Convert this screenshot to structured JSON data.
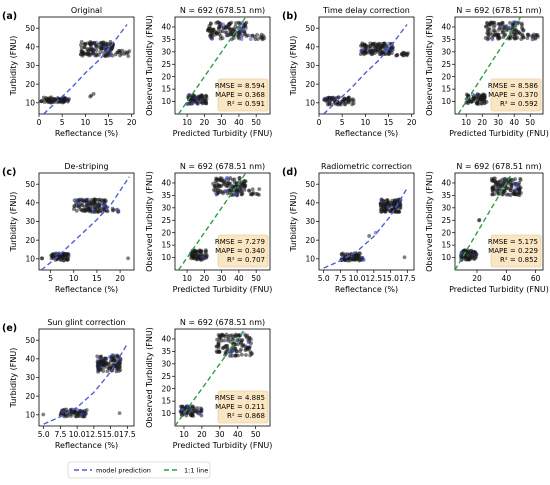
{
  "colors": {
    "model_line": "#4f5fd6",
    "identity_line": "#2e9e47",
    "points": "#1a1a1a",
    "points_highlight": "#3b4dd4",
    "stats_box": "#fbe6c3",
    "stats_border": "#e0c48e"
  },
  "legend": {
    "model_label": "model prediction",
    "identity_label": "1:1 line"
  },
  "chart_data": [
    {
      "type": "scatter",
      "panel_label": "(a)",
      "title": "Original",
      "xlabel": "Reflectance (%)",
      "ylabel": "Turbidity (FNU)",
      "xlim": [
        0,
        20.5
      ],
      "ylim": [
        4,
        56
      ],
      "xticks": [
        0,
        5,
        10,
        15,
        20
      ],
      "yticks": [
        10,
        20,
        30,
        40,
        50
      ],
      "series": [
        {
          "name": "model prediction",
          "kind": "model_curve",
          "x": [
            1,
            4,
            7,
            10,
            13,
            16,
            19
          ],
          "y": [
            4,
            11,
            18,
            26,
            33,
            42,
            52
          ]
        },
        {
          "kind": "points",
          "clusters": [
            {
              "x": [
                0.5,
                6.5
              ],
              "y": [
                10,
                13
              ],
              "n": 70
            },
            {
              "x": [
                9,
                16
              ],
              "y": [
                35,
                43
              ],
              "n": 120
            },
            {
              "x": [
                16.5,
                19.5
              ],
              "y": [
                35,
                38
              ],
              "n": 15
            },
            {
              "x": [
                10,
                12
              ],
              "y": [
                13,
                15
              ],
              "n": 3
            }
          ]
        }
      ]
    },
    {
      "type": "scatter",
      "title": "N = 692 (678.51 nm)",
      "xlabel": "Predicted Turbidity (FNU)",
      "ylabel": "Observed Turbidity (FNU)",
      "xlim": [
        3,
        58
      ],
      "ylim": [
        5,
        44
      ],
      "xticks": [
        10,
        20,
        30,
        40,
        50
      ],
      "yticks": [
        10,
        15,
        20,
        25,
        30,
        35,
        40
      ],
      "stats": {
        "rmse": "RMSE = 8.594",
        "mape": "MAPE = 0.368",
        "r2": "R² = 0.591"
      },
      "series": [
        {
          "name": "1:1 line",
          "kind": "identity",
          "x": [
            5,
            44
          ],
          "y": [
            5,
            44
          ]
        },
        {
          "kind": "points",
          "clusters": [
            {
              "x": [
                10,
                22
              ],
              "y": [
                9,
                13
              ],
              "n": 70
            },
            {
              "x": [
                22,
                45
              ],
              "y": [
                35,
                42
              ],
              "n": 120
            },
            {
              "x": [
                45,
                55
              ],
              "y": [
                35,
                37
              ],
              "n": 15
            }
          ]
        }
      ]
    },
    {
      "type": "scatter",
      "panel_label": "(b)",
      "title": "Time delay correction",
      "xlabel": "Reflectance (%)",
      "ylabel": "Turbidity (FNU)",
      "xlim": [
        0,
        20.5
      ],
      "ylim": [
        4,
        56
      ],
      "xticks": [
        0,
        5,
        10,
        15,
        20
      ],
      "yticks": [
        10,
        20,
        30,
        40,
        50
      ],
      "series": [
        {
          "name": "model prediction",
          "kind": "model_curve",
          "x": [
            1,
            4,
            7,
            10,
            13,
            16,
            19
          ],
          "y": [
            4,
            11,
            18,
            26,
            33,
            42,
            52
          ]
        },
        {
          "kind": "points",
          "clusters": [
            {
              "x": [
                1,
                7.5
              ],
              "y": [
                9,
                13
              ],
              "n": 70
            },
            {
              "x": [
                9,
                16
              ],
              "y": [
                36,
                42
              ],
              "n": 120
            },
            {
              "x": [
                16.5,
                19.5
              ],
              "y": [
                35,
                37
              ],
              "n": 15
            }
          ]
        }
      ]
    },
    {
      "type": "scatter",
      "title": "N = 692 (678.51 nm)",
      "xlabel": "Predicted Turbidity (FNU)",
      "ylabel": "Observed Turbidity (FNU)",
      "xlim": [
        3,
        58
      ],
      "ylim": [
        5,
        44
      ],
      "xticks": [
        10,
        20,
        30,
        40,
        50
      ],
      "yticks": [
        10,
        15,
        20,
        25,
        30,
        35,
        40
      ],
      "stats": {
        "rmse": "RMSE = 8.586",
        "mape": "MAPE = 0.370",
        "r2": "R² = 0.592"
      },
      "series": [
        {
          "name": "1:1 line",
          "kind": "identity",
          "x": [
            5,
            44
          ],
          "y": [
            5,
            44
          ]
        },
        {
          "kind": "points",
          "clusters": [
            {
              "x": [
                10,
                23
              ],
              "y": [
                9,
                13
              ],
              "n": 70
            },
            {
              "x": [
                22,
                46
              ],
              "y": [
                35,
                42
              ],
              "n": 120
            },
            {
              "x": [
                46,
                55
              ],
              "y": [
                35,
                37
              ],
              "n": 15
            }
          ]
        }
      ]
    },
    {
      "type": "scatter",
      "panel_label": "(c)",
      "title": "De-striping",
      "xlabel": "Reflectance (%)",
      "ylabel": "Turbidity (FNU)",
      "xlim": [
        2.5,
        23
      ],
      "ylim": [
        4,
        56
      ],
      "xticks": [
        5,
        10,
        15,
        20
      ],
      "yticks": [
        10,
        20,
        30,
        40,
        50
      ],
      "series": [
        {
          "name": "model prediction",
          "kind": "model_curve",
          "x": [
            3,
            6,
            9,
            12,
            15,
            18,
            22
          ],
          "y": [
            4,
            10,
            17,
            24,
            31,
            39,
            54
          ]
        },
        {
          "kind": "points",
          "clusters": [
            {
              "x": [
                5,
                9
              ],
              "y": [
                9,
                13
              ],
              "n": 70
            },
            {
              "x": [
                10,
                17
              ],
              "y": [
                35,
                42
              ],
              "n": 120
            },
            {
              "x": [
                17,
                20
              ],
              "y": [
                35,
                38
              ],
              "n": 12
            },
            {
              "x": [
                2.8,
                3.2
              ],
              "y": [
                10,
                11
              ],
              "n": 2
            },
            {
              "x": [
                21.5,
                22.5
              ],
              "y": [
                10,
                11
              ],
              "n": 1
            }
          ]
        }
      ]
    },
    {
      "type": "scatter",
      "title": "N = 692 (678.51 nm)",
      "xlabel": "Predicted Turbidity (FNU)",
      "ylabel": "Observed Turbidity (FNU)",
      "xlim": [
        3,
        58
      ],
      "ylim": [
        5,
        44
      ],
      "xticks": [
        10,
        20,
        30,
        40,
        50
      ],
      "yticks": [
        10,
        15,
        20,
        25,
        30,
        35,
        40
      ],
      "stats": {
        "rmse": "RMSE = 7.279",
        "mape": "MAPE = 0.340",
        "r2": "R² = 0.707"
      },
      "series": [
        {
          "name": "1:1 line",
          "kind": "identity",
          "x": [
            5,
            44
          ],
          "y": [
            5,
            44
          ]
        },
        {
          "kind": "points",
          "clusters": [
            {
              "x": [
                12,
                22
              ],
              "y": [
                9,
                13
              ],
              "n": 70
            },
            {
              "x": [
                25,
                44
              ],
              "y": [
                35,
                42
              ],
              "n": 120
            },
            {
              "x": [
                44,
                52
              ],
              "y": [
                35,
                38
              ],
              "n": 12
            }
          ]
        }
      ]
    },
    {
      "type": "scatter",
      "panel_label": "(d)",
      "title": "Radiometric correction",
      "xlabel": "Reflectance (%)",
      "ylabel": "Turbidity (FNU)",
      "xlim": [
        4.3,
        18.5
      ],
      "ylim": [
        4,
        56
      ],
      "xticks": [
        5.0,
        7.5,
        10.0,
        12.5,
        15.0,
        17.5
      ],
      "yticks": [
        10,
        20,
        30,
        40,
        50
      ],
      "series": [
        {
          "name": "model prediction",
          "kind": "model_curve",
          "x": [
            5,
            7.5,
            10,
            12.5,
            15,
            17.5
          ],
          "y": [
            5,
            9,
            14,
            22,
            33,
            48
          ]
        },
        {
          "kind": "points",
          "clusters": [
            {
              "x": [
                7.5,
                11
              ],
              "y": [
                9,
                13
              ],
              "n": 70
            },
            {
              "x": [
                13.5,
                16.5
              ],
              "y": [
                35,
                42
              ],
              "n": 120
            },
            {
              "x": [
                11,
                13
              ],
              "y": [
                20,
                26
              ],
              "n": 2
            },
            {
              "x": [
                16.8,
                17.2
              ],
              "y": [
                10,
                11
              ],
              "n": 1
            }
          ]
        }
      ]
    },
    {
      "type": "scatter",
      "title": "N = 692 (678.51 nm)",
      "xlabel": "Predicted Turbidity (FNU)",
      "ylabel": "Observed Turbidity (FNU)",
      "xlim": [
        5,
        65
      ],
      "ylim": [
        5,
        44
      ],
      "xticks": [
        20,
        40,
        60
      ],
      "yticks": [
        10,
        15,
        20,
        25,
        30,
        35,
        40
      ],
      "stats": {
        "rmse": "RMSE = 5.175",
        "mape": "MAPE = 0.229",
        "r2": "R² = 0.852"
      },
      "series": [
        {
          "name": "1:1 line",
          "kind": "identity",
          "x": [
            5,
            44
          ],
          "y": [
            5,
            44
          ]
        },
        {
          "kind": "points",
          "clusters": [
            {
              "x": [
                9,
                20
              ],
              "y": [
                9,
                13
              ],
              "n": 70
            },
            {
              "x": [
                30,
                50
              ],
              "y": [
                35,
                42
              ],
              "n": 120
            },
            {
              "x": [
                20,
                28
              ],
              "y": [
                20,
                26
              ],
              "n": 2
            }
          ]
        }
      ]
    },
    {
      "type": "scatter",
      "panel_label": "(e)",
      "title": "Sun glint correction",
      "xlabel": "Reflectance (%)",
      "ylabel": "Turbidity (FNU)",
      "xlim": [
        4.3,
        18.5
      ],
      "ylim": [
        4,
        56
      ],
      "xticks": [
        5.0,
        7.5,
        10.0,
        12.5,
        15.0,
        17.5
      ],
      "yticks": [
        10,
        20,
        30,
        40,
        50
      ],
      "series": [
        {
          "name": "model prediction",
          "kind": "model_curve",
          "x": [
            5,
            7.5,
            10,
            12.5,
            15,
            17.5
          ],
          "y": [
            5,
            9,
            14,
            22,
            33,
            48
          ]
        },
        {
          "kind": "points",
          "clusters": [
            {
              "x": [
                7.5,
                11.5
              ],
              "y": [
                9,
                13
              ],
              "n": 70
            },
            {
              "x": [
                13,
                16.5
              ],
              "y": [
                33,
                42
              ],
              "n": 120
            },
            {
              "x": [
                4.8,
                5.2
              ],
              "y": [
                10,
                11
              ],
              "n": 1
            },
            {
              "x": [
                16,
                16.5
              ],
              "y": [
                10,
                11
              ],
              "n": 1
            }
          ]
        }
      ]
    },
    {
      "type": "scatter",
      "title": "N = 692 (678.51 nm)",
      "xlabel": "Predicted Turbidity (FNU)",
      "ylabel": "Observed Turbidity (FNU)",
      "xlim": [
        5,
        58
      ],
      "ylim": [
        5,
        44
      ],
      "xticks": [
        10,
        20,
        30,
        40,
        50
      ],
      "yticks": [
        10,
        15,
        20,
        25,
        30,
        35,
        40
      ],
      "stats": {
        "rmse": "RMSE = 4.885",
        "mape": "MAPE = 0.211",
        "r2": "R² = 0.868"
      },
      "series": [
        {
          "name": "1:1 line",
          "kind": "identity",
          "x": [
            5,
            44
          ],
          "y": [
            5,
            44
          ]
        },
        {
          "kind": "points",
          "clusters": [
            {
              "x": [
                8,
                20
              ],
              "y": [
                9,
                13
              ],
              "n": 70
            },
            {
              "x": [
                28,
                48
              ],
              "y": [
                33,
                42
              ],
              "n": 120
            }
          ]
        }
      ]
    }
  ]
}
